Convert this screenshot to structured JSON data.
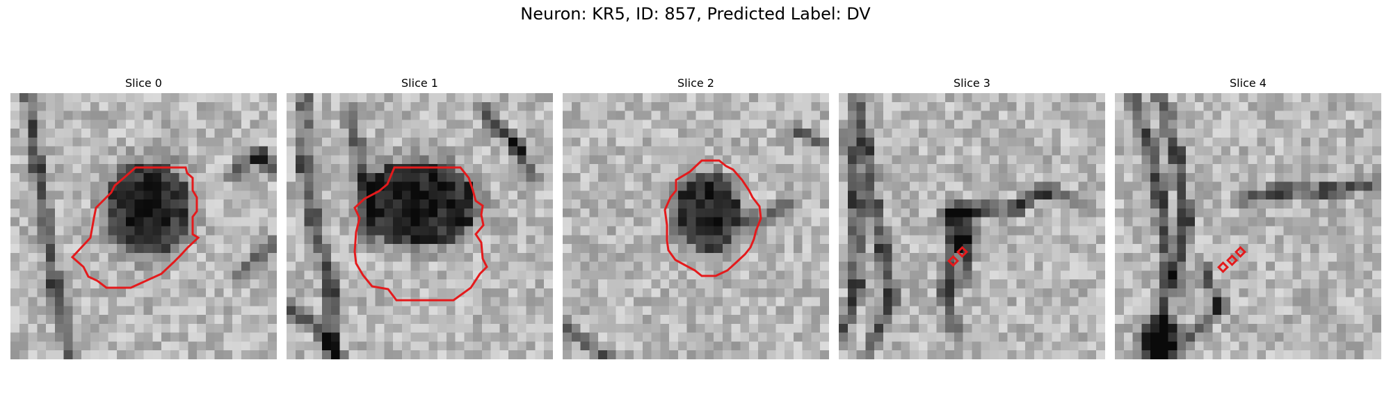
{
  "figure": {
    "title": "Neuron: KR5, ID: 857, Predicted Label: DV"
  },
  "contour_color": "#e41a1c",
  "panels": [
    {
      "title": "Slice 0",
      "contour_kind": "large-region"
    },
    {
      "title": "Slice 1",
      "contour_kind": "large-region"
    },
    {
      "title": "Slice 2",
      "contour_kind": "medium-region"
    },
    {
      "title": "Slice 3",
      "contour_kind": "small-squares"
    },
    {
      "title": "Slice 4",
      "contour_kind": "small-squares"
    }
  ]
}
